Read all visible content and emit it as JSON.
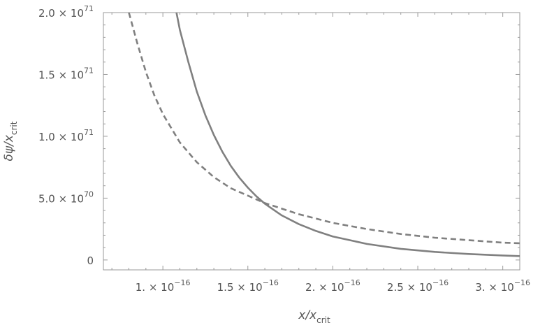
{
  "chart_data": {
    "type": "line",
    "title": "",
    "xlabel": {
      "main": "x/x",
      "sub": "crit"
    },
    "ylabel": {
      "main": "δψ/x",
      "sub": "crit"
    },
    "xlim": [
      6.5e-17,
      3.1e-16
    ],
    "ylim": [
      -8e+69,
      2e+71
    ],
    "xticks": [
      {
        "value": 1e-16,
        "mant": "1. × 10",
        "exp": "−16"
      },
      {
        "value": 1.5e-16,
        "mant": "1.5 × 10",
        "exp": "−16"
      },
      {
        "value": 2e-16,
        "mant": "2. × 10",
        "exp": "−16"
      },
      {
        "value": 2.5e-16,
        "mant": "2.5 × 10",
        "exp": "−16"
      },
      {
        "value": 3e-16,
        "mant": "3. × 10",
        "exp": "−16"
      }
    ],
    "yticks": [
      {
        "value": 0,
        "mant": "0",
        "exp": ""
      },
      {
        "value": 5e+70,
        "mant": "5.0 × 10",
        "exp": "70"
      },
      {
        "value": 1e+71,
        "mant": "1.0 × 10",
        "exp": "71"
      },
      {
        "value": 1.5e+71,
        "mant": "1.5 × 10",
        "exp": "71"
      },
      {
        "value": 2e+71,
        "mant": "2.0 × 10",
        "exp": "71"
      }
    ],
    "grid": false,
    "series": [
      {
        "style": "solid",
        "color": "#808080",
        "x": [
          1.08e-16,
          1.1e-16,
          1.15e-16,
          1.2e-16,
          1.25e-16,
          1.3e-16,
          1.35e-16,
          1.4e-16,
          1.45e-16,
          1.5e-16,
          1.55e-16,
          1.6e-16,
          1.7e-16,
          1.8e-16,
          1.9e-16,
          2e-16,
          2.2e-16,
          2.4e-16,
          2.6e-16,
          2.8e-16,
          3e-16,
          3.1e-16
        ],
        "y": [
          2e+71,
          1.86e+71,
          1.6e+71,
          1.36e+71,
          1.17e+71,
          1.01e+71,
          8.75e+70,
          7.6e+70,
          6.65e+70,
          5.85e+70,
          5.15e+70,
          4.55e+70,
          3.6e+70,
          2.9e+70,
          2.35e+70,
          1.9e+70,
          1.3e+70,
          9e+69,
          6.5e+69,
          4.8e+69,
          3.6e+69,
          3.1e+69
        ]
      },
      {
        "style": "dashed",
        "color": "#808080",
        "x": [
          8e-17,
          8.5e-17,
          9e-17,
          9.5e-17,
          1e-16,
          1.1e-16,
          1.2e-16,
          1.3e-16,
          1.4e-16,
          1.5e-16,
          1.6e-16,
          1.8e-16,
          2e-16,
          2.2e-16,
          2.4e-16,
          2.6e-16,
          2.8e-16,
          3e-16,
          3.1e-16
        ],
        "y": [
          2e+71,
          1.75e+71,
          1.52e+71,
          1.33e+71,
          1.18e+71,
          9.5e+70,
          7.9e+70,
          6.7e+70,
          5.8e+70,
          5.2e+70,
          4.6e+70,
          3.7e+70,
          3e+70,
          2.5e+70,
          2.1e+70,
          1.8e+70,
          1.6e+70,
          1.4e+70,
          1.35e+70
        ]
      }
    ]
  }
}
